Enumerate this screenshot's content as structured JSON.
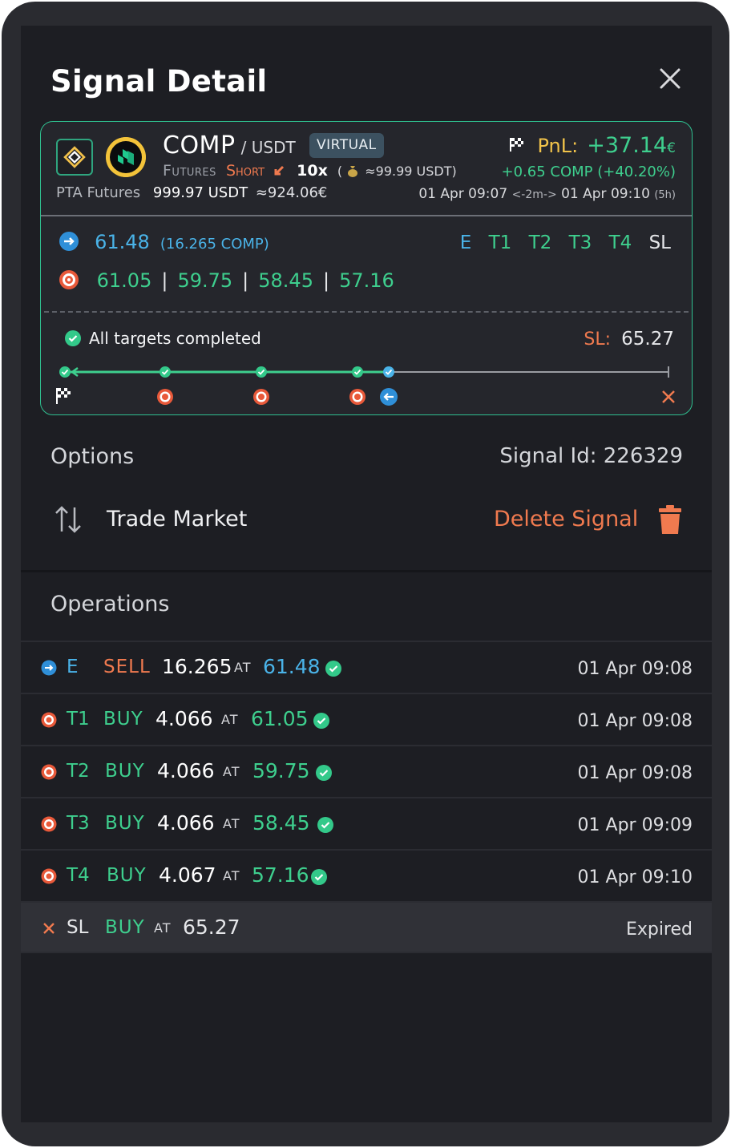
{
  "header": {
    "title": "Signal Detail"
  },
  "card": {
    "base": "COMP",
    "quote": "/ USDT",
    "badge": "VIRTUAL",
    "market_type": "Futures",
    "direction": "Short",
    "leverage": "10x",
    "margin_open": "(",
    "margin": "≈99.99 USDT)",
    "exchange": "PTA Futures",
    "amount": "999.97 USDT",
    "amount_eur": "≈924.06€",
    "pnl_label": "PnL:",
    "pnl_value": "+37.14",
    "pnl_currency": "€",
    "pnl_detail": "+0.65 COMP  (+40.20%)",
    "open_time": "01 Apr 09:07",
    "duration_arrow": "<-2m->",
    "close_time": "01 Apr 09:10",
    "duration_total": "(5h)",
    "entry_price": "61.48",
    "entry_qty": "(16.265 COMP)",
    "legend": [
      "E",
      "T1",
      "T2",
      "T3",
      "T4",
      "SL"
    ],
    "targets": [
      "61.05",
      "59.75",
      "58.45",
      "57.16"
    ],
    "status": "All targets completed",
    "sl_label": "SL:",
    "sl_value": "65.27"
  },
  "options": {
    "label": "Options",
    "signal_id": "Signal Id: 226329",
    "trade_market": "Trade Market",
    "delete_signal": "Delete Signal"
  },
  "operations": {
    "label": "Operations",
    "at": "AT",
    "rows": [
      {
        "code": "E",
        "side": "SELL",
        "qty": "16.265",
        "price": "61.48",
        "date": "01 Apr 09:08"
      },
      {
        "code": "T1",
        "side": "BUY",
        "qty": "4.066",
        "price": "61.05",
        "date": "01 Apr 09:08"
      },
      {
        "code": "T2",
        "side": "BUY",
        "qty": "4.066",
        "price": "59.75",
        "date": "01 Apr 09:08"
      },
      {
        "code": "T3",
        "side": "BUY",
        "qty": "4.066",
        "price": "58.45",
        "date": "01 Apr 09:09"
      },
      {
        "code": "T4",
        "side": "BUY",
        "qty": "4.067",
        "price": "57.16",
        "date": "01 Apr 09:10"
      },
      {
        "code": "SL",
        "side": "BUY",
        "qty": "",
        "price": "65.27",
        "date": "Expired"
      }
    ]
  },
  "colors": {
    "accent_green": "#3ecf8e",
    "accent_blue": "#4ab3e8",
    "accent_orange": "#f07a4f",
    "pnl_label": "#f1c34a",
    "background": "#1d1e23"
  }
}
